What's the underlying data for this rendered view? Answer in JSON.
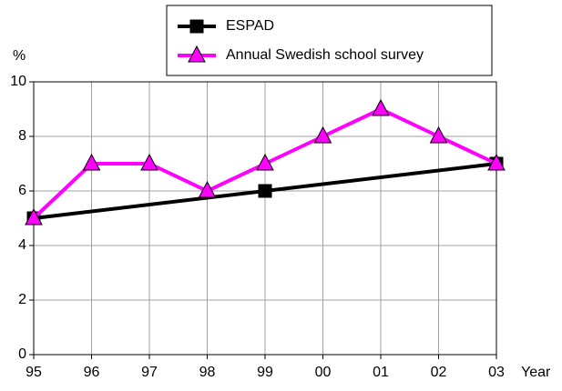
{
  "chart_data": {
    "type": "line",
    "categories": [
      "95",
      "96",
      "97",
      "98",
      "99",
      "00",
      "01",
      "02",
      "03"
    ],
    "y_label": "%",
    "x_label": "Year",
    "series": [
      {
        "name": "ESPAD",
        "color": "#000000",
        "marker": "square",
        "x": [
          "95",
          "99",
          "03"
        ],
        "values": [
          5,
          6,
          7
        ]
      },
      {
        "name": "Annual Swedish school survey",
        "color": "#ff00ff",
        "marker": "triangle",
        "values": [
          5,
          7,
          7,
          6,
          7,
          8,
          9,
          8,
          7
        ]
      }
    ],
    "ylim": [
      0,
      10
    ],
    "yticks": [
      0,
      2,
      4,
      6,
      8,
      10
    ],
    "grid": true,
    "legend": "top-right"
  }
}
